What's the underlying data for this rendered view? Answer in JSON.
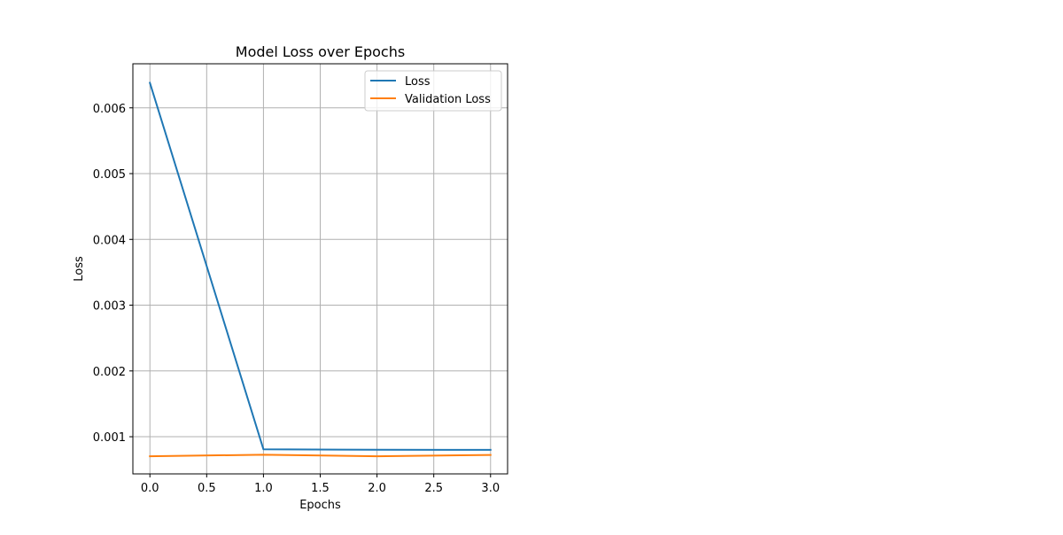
{
  "chart_data": {
    "type": "line",
    "title": "Model Loss over Epochs",
    "xlabel": "Epochs",
    "ylabel": "Loss",
    "xlim": [
      -0.15,
      3.15
    ],
    "ylim": [
      0.000435,
      0.00667
    ],
    "xticks": [
      0.0,
      0.5,
      1.0,
      1.5,
      2.0,
      2.5,
      3.0
    ],
    "xtick_labels": [
      "0.0",
      "0.5",
      "1.0",
      "1.5",
      "2.0",
      "2.5",
      "3.0"
    ],
    "yticks": [
      0.001,
      0.002,
      0.003,
      0.004,
      0.005,
      0.006
    ],
    "ytick_labels": [
      "0.001",
      "0.002",
      "0.003",
      "0.004",
      "0.005",
      "0.006"
    ],
    "grid": true,
    "legend_position": "upper right",
    "x": [
      0,
      1,
      2,
      3
    ],
    "series": [
      {
        "name": "Loss",
        "color": "#1f77b4",
        "values": [
          0.00638,
          0.000808,
          0.000802,
          0.0008
        ]
      },
      {
        "name": "Validation Loss",
        "color": "#ff7f0e",
        "values": [
          0.000702,
          0.000727,
          0.000702,
          0.000723
        ]
      }
    ]
  }
}
